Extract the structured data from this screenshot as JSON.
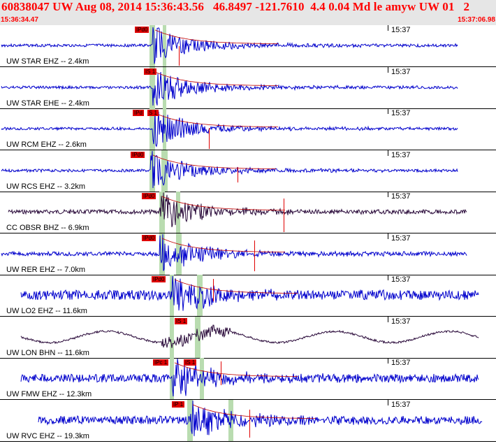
{
  "header": {
    "title": "60838047 UW Aug 08, 2014 15:36:43.56   46.8497 -121.7610  4.4 0.04 Md le amyw UW 01   2",
    "start_time": "15:36:34.47",
    "end_time": "15:37:06.98"
  },
  "time_tick_label": "15:37",
  "colors": {
    "title": "#ff0000",
    "trace_blue": "#0000cc",
    "trace_dark": "#2a0a3a",
    "pick": "#e00000",
    "band_green": "#b9dcb0"
  },
  "panels": [
    {
      "label": "UW STAR EHZ -- 2.4km",
      "picks": [
        "IPd0"
      ],
      "dark": false
    },
    {
      "label": "UW STAR EHE -- 2.4km",
      "picks": [
        "IS 1"
      ],
      "dark": false
    },
    {
      "label": "UW RCM EHZ -- 2.6km",
      "picks": [
        "IPd",
        "S 1"
      ],
      "dark": false
    },
    {
      "label": "UW RCS EHZ -- 3.2km",
      "picks": [
        "IPd0"
      ],
      "dark": false
    },
    {
      "label": "CC OBSR BHZ -- 6.9km",
      "picks": [
        "IPd0"
      ],
      "dark": true
    },
    {
      "label": "UW RER EHZ -- 7.0km",
      "picks": [
        "IPd0"
      ],
      "dark": false
    },
    {
      "label": "UW LO2 EHZ -- 11.6km",
      "picks": [
        "IPd0"
      ],
      "dark": false
    },
    {
      "label": "UW LON BHN -- 11.6km",
      "picks": [
        "IS 1"
      ],
      "dark": true
    },
    {
      "label": "UW FMW EHZ -- 12.3km",
      "picks": [
        "IPc 1",
        "IS 1"
      ],
      "dark": false
    },
    {
      "label": "UW RVC EHZ -- 19.3km",
      "picks": [
        "IP 1"
      ],
      "dark": false
    }
  ]
}
